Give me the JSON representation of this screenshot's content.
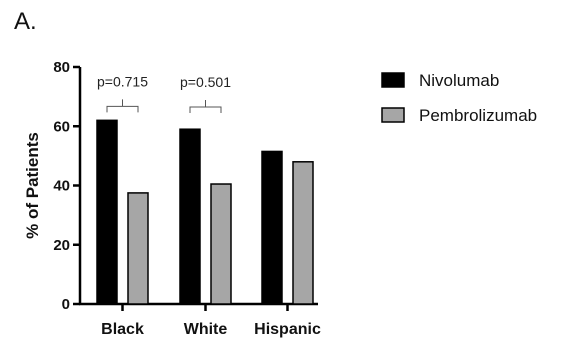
{
  "panel_label": "A.",
  "colors": {
    "Nivolumab": "#000000",
    "Pembrolizumab": "#a6a6a6",
    "stroke": "#000000"
  },
  "chart_data": {
    "type": "bar",
    "title": "",
    "xlabel": "",
    "ylabel": "% of Patients",
    "ylim": [
      0,
      80
    ],
    "yticks": [
      0,
      20,
      40,
      60,
      80
    ],
    "categories": [
      "Black",
      "White",
      "Hispanic"
    ],
    "series": [
      {
        "name": "Nivolumab",
        "values": [
          62,
          59,
          51.5
        ]
      },
      {
        "name": "Pembrolizumab",
        "values": [
          37.5,
          40.5,
          48
        ]
      }
    ],
    "legend_position": "right",
    "grid": false,
    "annotations": [
      {
        "text": "p=0.715",
        "category": "Black"
      },
      {
        "text": "p=0.501",
        "category": "White"
      }
    ]
  }
}
